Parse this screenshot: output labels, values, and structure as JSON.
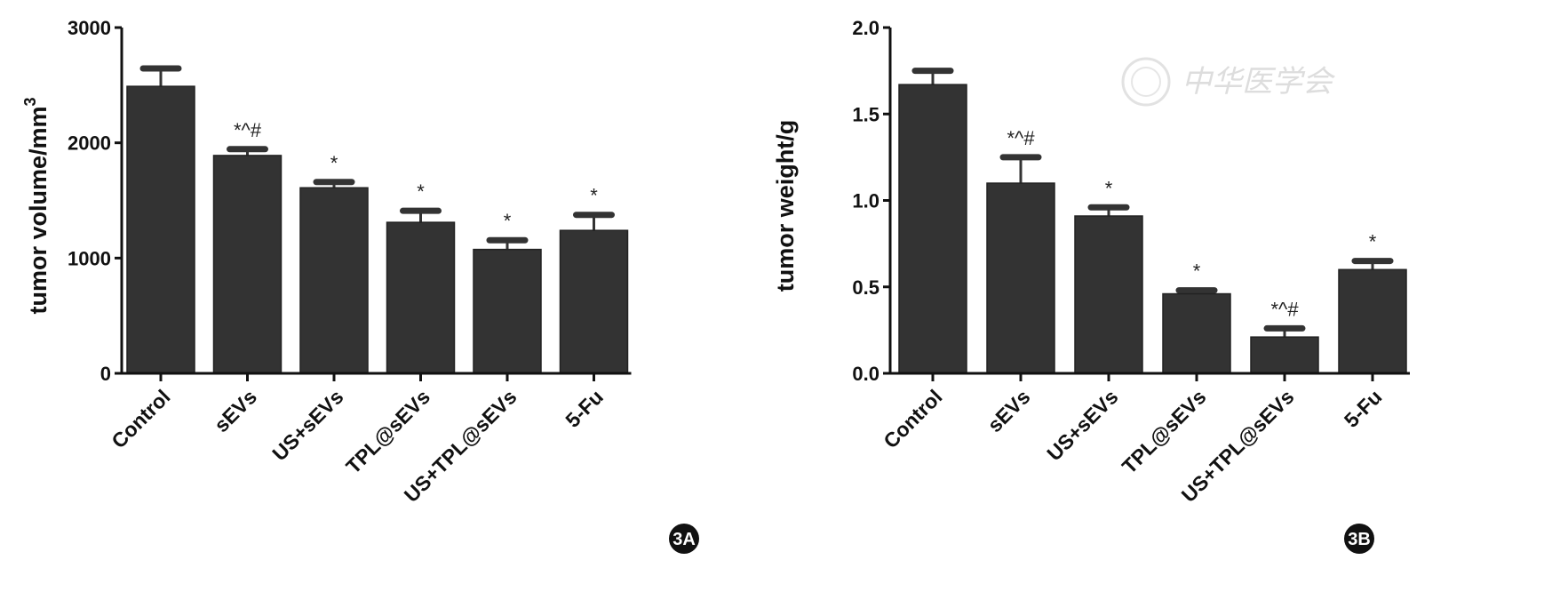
{
  "chart_data": [
    {
      "type": "bar",
      "panel_label": "3A",
      "title": "",
      "xlabel": "",
      "ylabel": "tumor volume/mm",
      "ylabel_superscript": "3",
      "ylim": [
        0,
        3000
      ],
      "yticks": [
        "0",
        "1000",
        "2000",
        "3000"
      ],
      "ytick_values": [
        0,
        1000,
        2000,
        3000
      ],
      "categories": [
        "Control",
        "sEVs",
        "US+sEVs",
        "TPL@sEVs",
        "US+TPL@sEVs",
        "5-Fu"
      ],
      "values": [
        2490,
        1890,
        1610,
        1310,
        1075,
        1240
      ],
      "errors": [
        155,
        55,
        50,
        100,
        80,
        135
      ],
      "annotations": [
        "",
        "*^#",
        "*",
        "*",
        "*",
        "*"
      ],
      "grid": false
    },
    {
      "type": "bar",
      "panel_label": "3B",
      "title": "",
      "xlabel": "",
      "ylabel": "tumor weight/g",
      "ylabel_superscript": "",
      "ylim": [
        0,
        2.0
      ],
      "yticks": [
        "0.0",
        "0.5",
        "1.0",
        "1.5",
        "2.0"
      ],
      "ytick_values": [
        0,
        0.5,
        1.0,
        1.5,
        2.0
      ],
      "categories": [
        "Control",
        "sEVs",
        "US+sEVs",
        "TPL@sEVs",
        "US+TPL@sEVs",
        "5-Fu"
      ],
      "values": [
        1.67,
        1.1,
        0.91,
        0.46,
        0.21,
        0.6
      ],
      "errors": [
        0.08,
        0.15,
        0.05,
        0.02,
        0.05,
        0.05
      ],
      "annotations": [
        "",
        "*^#",
        "*",
        "*",
        "*^#",
        "*"
      ],
      "grid": false
    }
  ],
  "watermark": "中华医学会",
  "colors": {
    "bar": "#333333",
    "axis": "#111111"
  }
}
